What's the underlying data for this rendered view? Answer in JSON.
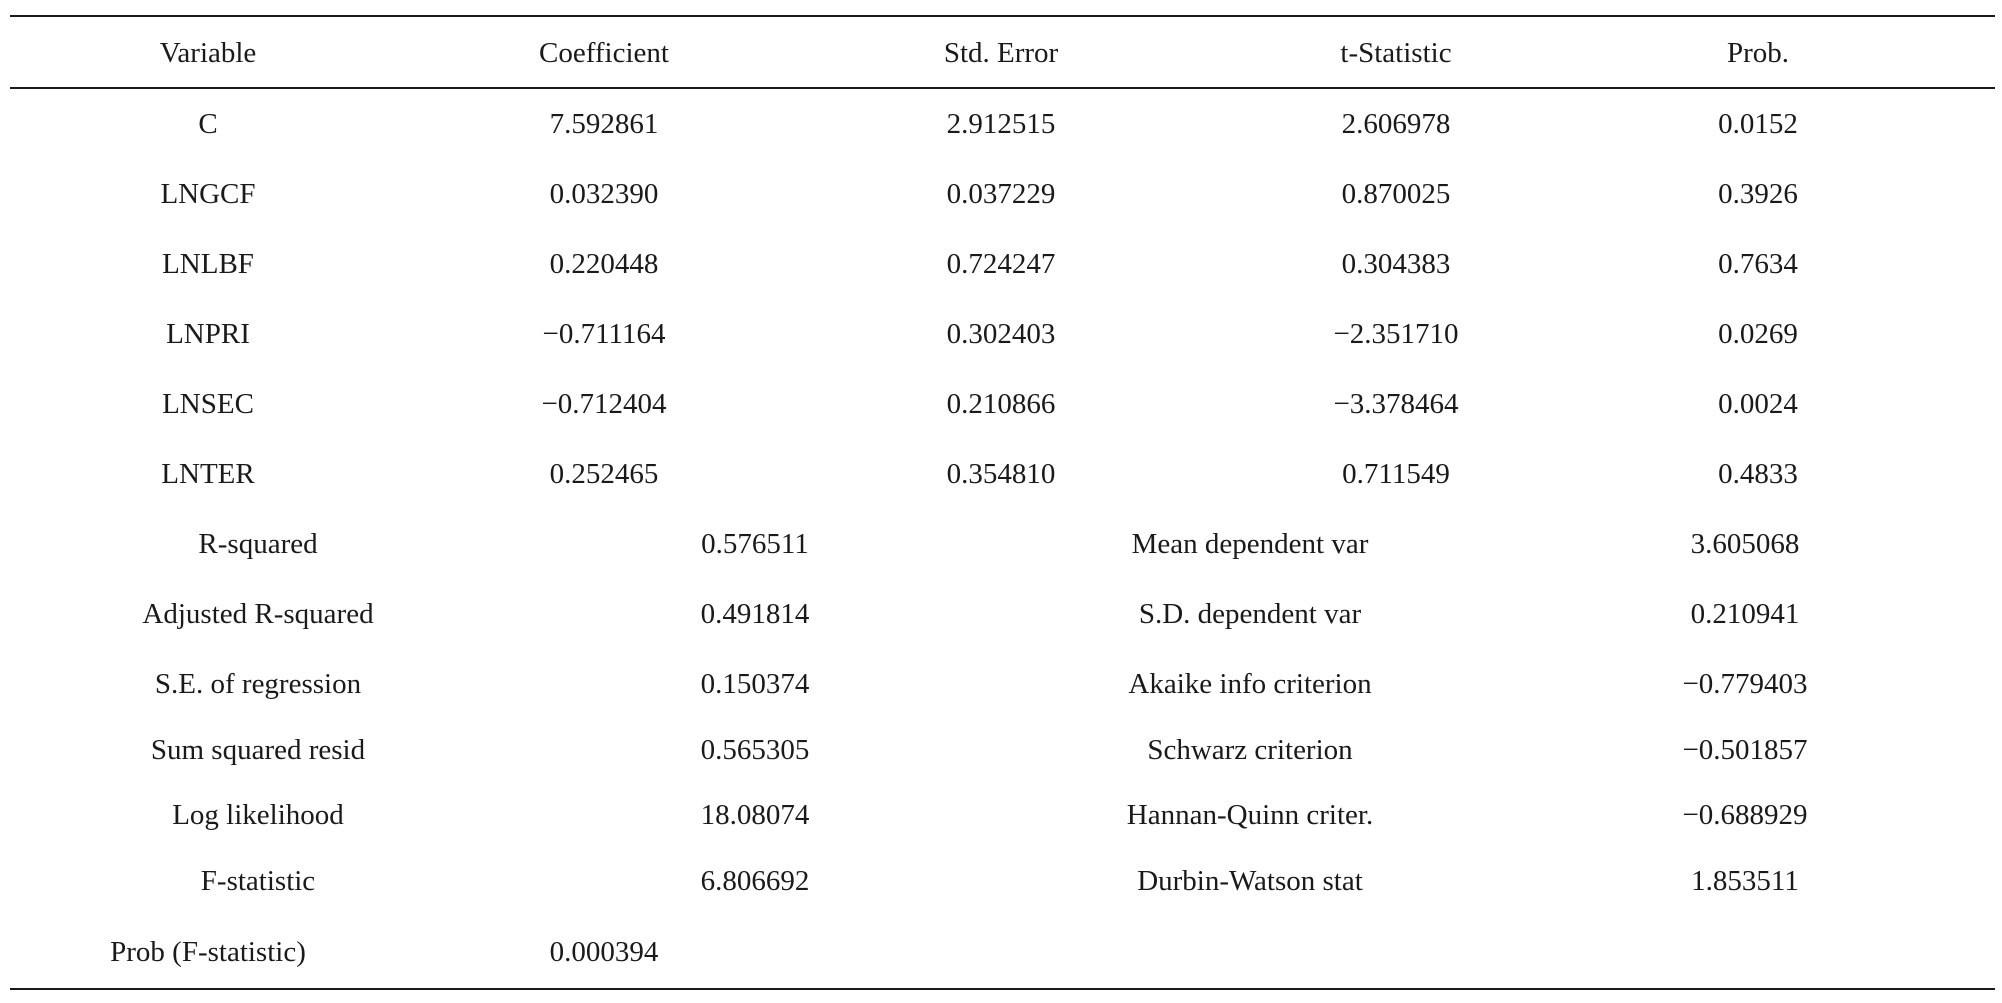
{
  "headers": [
    "Variable",
    "Coefficient",
    "Std. Error",
    "t-Statistic",
    "Prob."
  ],
  "rows": [
    [
      "C",
      "7.592861",
      "2.912515",
      "2.606978",
      "0.0152"
    ],
    [
      "LNGCF",
      "0.032390",
      "0.037229",
      "0.870025",
      "0.3926"
    ],
    [
      "LNLBF",
      "0.220448",
      "0.724247",
      "0.304383",
      "0.7634"
    ],
    [
      "LNPRI",
      "−0.711164",
      "0.302403",
      "−2.351710",
      "0.0269"
    ],
    [
      "LNSEC",
      "−0.712404",
      "0.210866",
      "−3.378464",
      "0.0024"
    ],
    [
      "LNTER",
      "0.252465",
      "0.354810",
      "0.711549",
      "0.4833"
    ]
  ],
  "stats": [
    [
      "R-squared",
      "0.576511",
      "Mean dependent var",
      "3.605068"
    ],
    [
      "Adjusted R-squared",
      "0.491814",
      "S.D. dependent var",
      "0.210941"
    ],
    [
      "S.E. of regression",
      "0.150374",
      "Akaike info criterion",
      "−0.779403"
    ],
    [
      "Sum squared resid",
      "0.565305",
      "Schwarz criterion",
      "−0.501857"
    ],
    [
      "Log likelihood",
      "18.08074",
      "Hannan-Quinn criter.",
      "−0.688929"
    ],
    [
      "F-statistic",
      "6.806692",
      "Durbin-Watson stat",
      "1.853511"
    ]
  ],
  "prob_f": {
    "label": "Prob (F-statistic)",
    "value": "0.000394"
  }
}
